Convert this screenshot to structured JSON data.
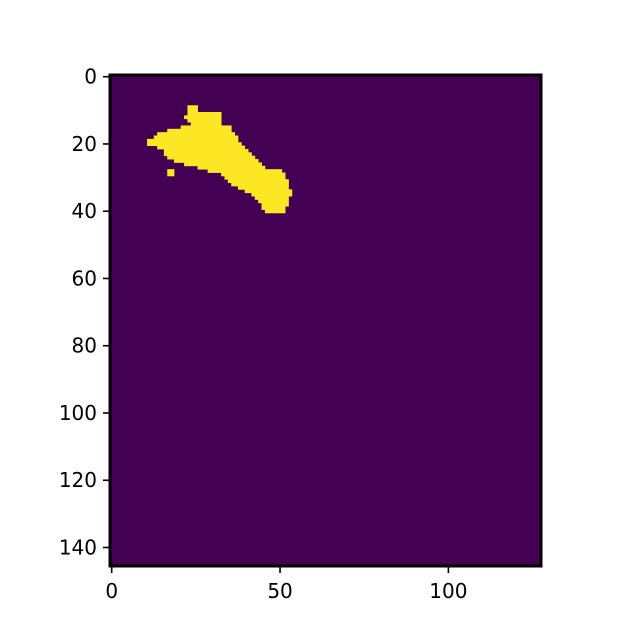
{
  "chart_data": {
    "type": "heatmap",
    "title": "",
    "xlabel": "",
    "ylabel": "",
    "grid": false,
    "image_shape": [
      146,
      128
    ],
    "xlim": [
      -0.5,
      127.5
    ],
    "ylim": [
      145.5,
      -0.5
    ],
    "x_ticks": [
      {
        "value": 0,
        "label": "0"
      },
      {
        "value": 50,
        "label": "50"
      },
      {
        "value": 100,
        "label": "100"
      }
    ],
    "y_ticks": [
      {
        "value": 0,
        "label": "0"
      },
      {
        "value": 20,
        "label": "20"
      },
      {
        "value": 40,
        "label": "40"
      },
      {
        "value": 60,
        "label": "60"
      },
      {
        "value": 80,
        "label": "80"
      },
      {
        "value": 100,
        "label": "100"
      },
      {
        "value": 120,
        "label": "120"
      },
      {
        "value": 140,
        "label": "140"
      }
    ],
    "colors": {
      "background_value_0": "#440154",
      "mask_value_1": "#fde725"
    },
    "mask_value": 1,
    "background_value": 0,
    "mask_rows": [
      {
        "y": 9,
        "x_start": 23,
        "x_end": 25
      },
      {
        "y": 10,
        "x_start": 23,
        "x_end": 25
      },
      {
        "y": 11,
        "x_start": 23,
        "x_end": 32
      },
      {
        "y": 12,
        "x_start": 22,
        "x_end": 32
      },
      {
        "y": 13,
        "x_start": 23,
        "x_end": 32
      },
      {
        "y": 14,
        "x_start": 24,
        "x_end": 32
      },
      {
        "y": 15,
        "x_start": 21,
        "x_end": 35
      },
      {
        "y": 16,
        "x_start": 17,
        "x_end": 35
      },
      {
        "y": 17,
        "x_start": 14,
        "x_end": 36
      },
      {
        "y": 18,
        "x_start": 13,
        "x_end": 37
      },
      {
        "y": 19,
        "x_start": 11,
        "x_end": 37
      },
      {
        "y": 20,
        "x_start": 11,
        "x_end": 38
      },
      {
        "y": 21,
        "x_start": 14,
        "x_end": 39
      },
      {
        "y": 22,
        "x_start": 16,
        "x_end": 40
      },
      {
        "y": 23,
        "x_start": 16,
        "x_end": 41
      },
      {
        "y": 24,
        "x_start": 17,
        "x_end": 42
      },
      {
        "y": 25,
        "x_start": 19,
        "x_end": 43
      },
      {
        "y": 26,
        "x_start": 22,
        "x_end": 44
      },
      {
        "y": 27,
        "x_start": 26,
        "x_end": 45
      },
      {
        "y": 28,
        "x_start": 17,
        "x_end": 18
      },
      {
        "y": 28,
        "x_start": 29,
        "x_end": 50
      },
      {
        "y": 29,
        "x_start": 17,
        "x_end": 18
      },
      {
        "y": 29,
        "x_start": 33,
        "x_end": 51
      },
      {
        "y": 30,
        "x_start": 34,
        "x_end": 51
      },
      {
        "y": 31,
        "x_start": 35,
        "x_end": 52
      },
      {
        "y": 32,
        "x_start": 36,
        "x_end": 52
      },
      {
        "y": 33,
        "x_start": 38,
        "x_end": 52
      },
      {
        "y": 34,
        "x_start": 40,
        "x_end": 53
      },
      {
        "y": 35,
        "x_start": 42,
        "x_end": 53
      },
      {
        "y": 36,
        "x_start": 43,
        "x_end": 52
      },
      {
        "y": 37,
        "x_start": 44,
        "x_end": 52
      },
      {
        "y": 38,
        "x_start": 45,
        "x_end": 52
      },
      {
        "y": 39,
        "x_start": 45,
        "x_end": 51
      },
      {
        "y": 40,
        "x_start": 46,
        "x_end": 51
      }
    ]
  }
}
